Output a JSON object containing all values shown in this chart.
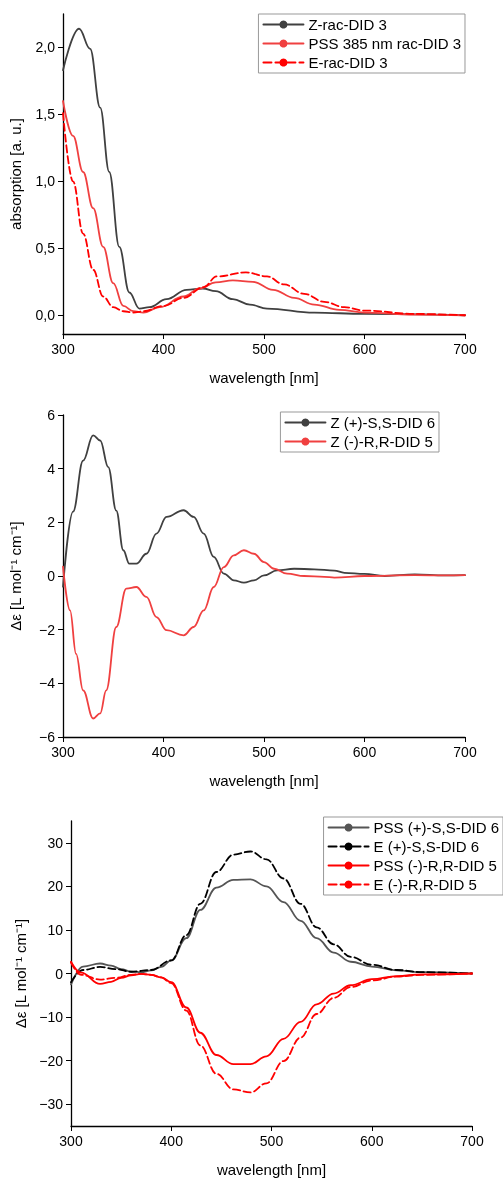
{
  "chart_data": [
    {
      "type": "line",
      "xlabel": "wavelength [nm]",
      "ylabel": "absorption [a. u.]",
      "xlim": [
        300,
        700
      ],
      "xticks": [
        300,
        400,
        500,
        600,
        700
      ],
      "ylim": [
        -0.14,
        2.25
      ],
      "yticks": [
        {
          "value": 0,
          "label": "0,0"
        },
        {
          "value": 0.5,
          "label": "0,5"
        },
        {
          "value": 1,
          "label": "1,0"
        },
        {
          "value": 1.5,
          "label": "1,5"
        },
        {
          "value": 2,
          "label": "2,0"
        }
      ],
      "grid": false,
      "legend": "top right",
      "marker": "none",
      "series": [
        {
          "name": "Z-rac-DID 3",
          "color": "#404040",
          "line_style": "solid",
          "x": [
            300,
            316,
            327,
            337,
            346,
            356,
            366,
            376,
            386,
            403,
            423,
            439,
            452,
            469,
            486,
            503,
            550,
            600,
            700
          ],
          "values": [
            1.83,
            2.14,
            1.99,
            1.55,
            1.07,
            0.51,
            0.17,
            0.05,
            0.06,
            0.12,
            0.19,
            0.2,
            0.18,
            0.12,
            0.08,
            0.05,
            0.02,
            0.01,
            0
          ]
        },
        {
          "name": "PSS 385 nm rac-DID 3",
          "color": "#f04040",
          "line_style": "solid",
          "x": [
            300,
            310,
            320,
            330,
            340,
            350,
            360,
            370,
            380,
            396,
            420,
            436,
            452,
            469,
            489,
            509,
            530,
            550,
            575,
            600,
            650,
            700
          ],
          "values": [
            1.6,
            1.34,
            1.07,
            0.8,
            0.51,
            0.24,
            0.07,
            0.03,
            0.02,
            0.06,
            0.14,
            0.2,
            0.245,
            0.26,
            0.25,
            0.19,
            0.13,
            0.08,
            0.04,
            0.02,
            0.005,
            0
          ]
        },
        {
          "name": "E-rac-DID 3",
          "color": "#ff0000",
          "line_style": "dashed",
          "x": [
            300,
            310,
            320,
            330,
            340,
            350,
            360,
            370,
            380,
            400,
            420,
            440,
            453,
            482,
            503,
            520,
            540,
            560,
            580,
            600,
            650,
            700
          ],
          "values": [
            1.51,
            1.0,
            0.61,
            0.34,
            0.14,
            0.06,
            0.03,
            0.02,
            0.03,
            0.07,
            0.13,
            0.21,
            0.29,
            0.32,
            0.29,
            0.23,
            0.16,
            0.1,
            0.06,
            0.035,
            0.01,
            0
          ]
        }
      ]
    },
    {
      "type": "line",
      "xlabel": "wavelength [nm]",
      "ylabel": "Δε [L mol⁻¹ cm⁻¹]",
      "xlim": [
        300,
        700
      ],
      "xticks": [
        300,
        400,
        500,
        600,
        700
      ],
      "ylim": [
        -6,
        6
      ],
      "yticks": [
        {
          "value": -6,
          "label": "−6"
        },
        {
          "value": -4,
          "label": "−4"
        },
        {
          "value": -2,
          "label": "−2"
        },
        0,
        2,
        4,
        6
      ],
      "grid": false,
      "legend": "top right",
      "marker": "none",
      "series": [
        {
          "name": "Z (+)-S,S-DID 6",
          "color": "#404040",
          "line_style": "solid",
          "x": [
            300,
            310,
            320,
            330,
            337,
            345,
            353,
            360,
            366,
            373,
            383,
            393,
            403,
            420,
            430,
            440,
            450,
            460,
            470,
            480,
            490,
            500,
            513,
            530,
            550,
            570,
            580,
            600,
            620,
            650,
            680,
            700
          ],
          "values": [
            -0.4,
            2.4,
            4.3,
            5.24,
            5.05,
            4.06,
            2.44,
            0.96,
            0.46,
            0.46,
            0.83,
            1.58,
            2.2,
            2.45,
            2.2,
            1.58,
            0.71,
            0.09,
            -0.16,
            -0.25,
            -0.16,
            0.02,
            0.21,
            0.27,
            0.25,
            0.2,
            0.12,
            0.08,
            0,
            0.06,
            0.02,
            0.03
          ]
        },
        {
          "name": "Z (-)-R,R-DID 5",
          "color": "#f04040",
          "line_style": "solid",
          "x": [
            300,
            307,
            313,
            320,
            330,
            337,
            343,
            353,
            363,
            373,
            383,
            393,
            403,
            420,
            430,
            440,
            450,
            460,
            470,
            480,
            490,
            500,
            510,
            523,
            540,
            560,
            570,
            600,
            650,
            680,
            700
          ],
          "values": [
            0.35,
            -1.28,
            -2.9,
            -4.26,
            -5.31,
            -5.12,
            -4.26,
            -1.9,
            -0.47,
            -0.41,
            -0.78,
            -1.53,
            -2.02,
            -2.21,
            -1.9,
            -1.28,
            -0.41,
            0.33,
            0.77,
            0.96,
            0.83,
            0.52,
            0.27,
            0.09,
            0,
            -0.03,
            -0.06,
            0,
            0.03,
            0.02,
            0.03
          ]
        }
      ]
    },
    {
      "type": "line",
      "xlabel": "wavelength [nm]",
      "ylabel": "Δε [L mol⁻¹ cm⁻¹]",
      "xlim": [
        300,
        700
      ],
      "xticks": [
        300,
        400,
        500,
        600,
        700
      ],
      "ylim": [
        -35,
        35
      ],
      "yticks": [
        {
          "value": -30,
          "label": "−30"
        },
        {
          "value": -20,
          "label": "−20"
        },
        {
          "value": -10,
          "label": "−10"
        },
        0,
        10,
        20,
        30
      ],
      "grid": false,
      "legend": "top right",
      "marker": "none",
      "series": [
        {
          "name": "PSS (+)-S,S-DID 6",
          "color": "#555555",
          "line_style": "solid",
          "x": [
            300,
            312,
            329,
            340,
            350,
            360,
            370,
            380,
            390,
            400,
            415,
            429,
            445,
            462,
            479,
            495,
            512,
            529,
            545,
            562,
            579,
            600,
            625,
            650,
            700
          ],
          "values": [
            -2.5,
            1.6,
            2.3,
            1.8,
            1.0,
            0.4,
            0.3,
            0.7,
            1.5,
            3,
            8.1,
            14.6,
            19.7,
            21.5,
            21.6,
            20,
            16.4,
            12.1,
            8.1,
            4.8,
            2.7,
            1.6,
            0.7,
            0.3,
            0
          ]
        },
        {
          "name": "E (+)-S,S-DID 6",
          "color": "#000000",
          "line_style": "dashed",
          "x": [
            300,
            312,
            329,
            345,
            360,
            380,
            400,
            415,
            429,
            445,
            462,
            479,
            495,
            512,
            529,
            545,
            562,
            579,
            600,
            625,
            650,
            700
          ],
          "values": [
            -2,
            0.8,
            1.5,
            1.0,
            0.4,
            0.8,
            3,
            8.8,
            16,
            23.3,
            27.3,
            28,
            26.2,
            21.8,
            16,
            10.6,
            6.7,
            3.8,
            2.0,
            0.8,
            0.3,
            0
          ]
        },
        {
          "name": "PSS (-)-R,R-DID 5",
          "color": "#ff0000",
          "line_style": "solid",
          "x": [
            300,
            310,
            329,
            340,
            350,
            360,
            370,
            380,
            390,
            400,
            415,
            429,
            445,
            462,
            479,
            495,
            512,
            529,
            545,
            562,
            579,
            600,
            625,
            650,
            700
          ],
          "values": [
            2.7,
            0.2,
            -2.4,
            -1.9,
            -1.0,
            -0.4,
            -0.1,
            -0.3,
            -0.9,
            -2.0,
            -7.8,
            -13.6,
            -18.7,
            -20.8,
            -20.8,
            -19,
            -15,
            -11.1,
            -7.1,
            -4.6,
            -2.7,
            -1.3,
            -0.6,
            -0.2,
            0
          ]
        },
        {
          "name": "E (-)-R,R-DID 5",
          "color": "#ff0000",
          "line_style": "dashed",
          "x": [
            300,
            310,
            329,
            345,
            360,
            370,
            380,
            390,
            400,
            415,
            429,
            445,
            462,
            479,
            495,
            512,
            529,
            545,
            562,
            579,
            600,
            625,
            650,
            700
          ],
          "values": [
            2.5,
            -0.3,
            -1.4,
            -1.0,
            -0.3,
            -0.1,
            -0.3,
            -0.9,
            -2.2,
            -8.5,
            -16.5,
            -23,
            -26.6,
            -27.3,
            -25.2,
            -20.1,
            -14.7,
            -9.3,
            -5.6,
            -3.1,
            -1.6,
            -0.7,
            -0.3,
            0
          ]
        }
      ]
    }
  ]
}
